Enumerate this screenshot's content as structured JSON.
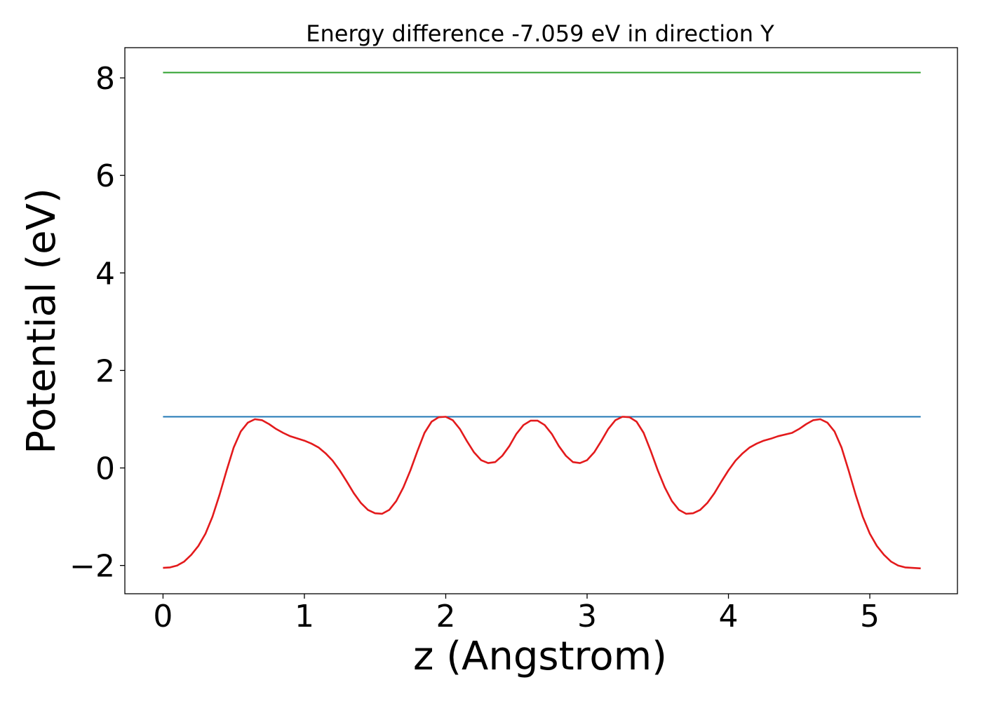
{
  "chart_data": {
    "type": "line",
    "title": "Energy difference -7.059 eV in direction Y",
    "xlabel": "z (Angstrom)",
    "ylabel": "Potential (eV)",
    "xlim": [
      -0.27,
      5.62
    ],
    "ylim": [
      -2.58,
      8.62
    ],
    "xticks": [
      0,
      1,
      2,
      3,
      4,
      5
    ],
    "xtick_labels": [
      "0",
      "1",
      "2",
      "3",
      "4",
      "5"
    ],
    "yticks": [
      -2,
      0,
      2,
      4,
      6,
      8
    ],
    "ytick_labels": [
      "−2",
      "0",
      "2",
      "4",
      "6",
      "8"
    ],
    "grid": false,
    "series": [
      {
        "color": "#2ca02c",
        "x": [
          0,
          5.36
        ],
        "y": [
          8.11,
          8.11
        ]
      },
      {
        "color": "#1f77b4",
        "x": [
          0,
          5.36
        ],
        "y": [
          1.05,
          1.05
        ]
      },
      {
        "color": "#e31a1c",
        "x": [
          0,
          0.05,
          0.1,
          0.15,
          0.2,
          0.25,
          0.3,
          0.35,
          0.4,
          0.45,
          0.5,
          0.55,
          0.6,
          0.65,
          0.7,
          0.75,
          0.8,
          0.85,
          0.9,
          1.0,
          1.05,
          1.1,
          1.15,
          1.2,
          1.25,
          1.3,
          1.35,
          1.4,
          1.45,
          1.5,
          1.55,
          1.6,
          1.65,
          1.7,
          1.75,
          1.8,
          1.85,
          1.9,
          1.95,
          2.0,
          2.05,
          2.1,
          2.15,
          2.2,
          2.25,
          2.3,
          2.35,
          2.4,
          2.45,
          2.5,
          2.55,
          2.6,
          2.65,
          2.7,
          2.75,
          2.8,
          2.85,
          2.9,
          2.95,
          3.0,
          3.05,
          3.1,
          3.15,
          3.2,
          3.25,
          3.3,
          3.35,
          3.4,
          3.45,
          3.5,
          3.55,
          3.6,
          3.65,
          3.7,
          3.75,
          3.8,
          3.85,
          3.9,
          3.95,
          4.0,
          4.05,
          4.1,
          4.15,
          4.2,
          4.25,
          4.3,
          4.35,
          4.45,
          4.5,
          4.55,
          4.6,
          4.65,
          4.7,
          4.75,
          4.8,
          4.85,
          4.9,
          4.95,
          5.0,
          5.05,
          5.1,
          5.15,
          5.2,
          5.25,
          5.3,
          5.36
        ],
        "y": [
          -2.05,
          -2.04,
          -2.0,
          -1.92,
          -1.78,
          -1.6,
          -1.35,
          -1.0,
          -0.55,
          -0.05,
          0.42,
          0.75,
          0.93,
          1.0,
          0.98,
          0.9,
          0.8,
          0.72,
          0.65,
          0.56,
          0.5,
          0.42,
          0.3,
          0.15,
          -0.05,
          -0.28,
          -0.52,
          -0.72,
          -0.86,
          -0.93,
          -0.94,
          -0.86,
          -0.68,
          -0.4,
          -0.05,
          0.35,
          0.72,
          0.95,
          1.04,
          1.05,
          0.98,
          0.8,
          0.55,
          0.32,
          0.16,
          0.1,
          0.12,
          0.25,
          0.45,
          0.7,
          0.88,
          0.97,
          0.97,
          0.88,
          0.7,
          0.45,
          0.25,
          0.12,
          0.1,
          0.16,
          0.32,
          0.55,
          0.8,
          0.98,
          1.05,
          1.04,
          0.95,
          0.72,
          0.35,
          -0.05,
          -0.4,
          -0.68,
          -0.86,
          -0.94,
          -0.93,
          -0.86,
          -0.72,
          -0.52,
          -0.28,
          -0.05,
          0.15,
          0.3,
          0.42,
          0.5,
          0.56,
          0.6,
          0.65,
          0.72,
          0.8,
          0.9,
          0.98,
          1.0,
          0.93,
          0.75,
          0.42,
          -0.05,
          -0.55,
          -1.0,
          -1.35,
          -1.6,
          -1.78,
          -1.92,
          -2.0,
          -2.04,
          -2.05,
          -2.06
        ]
      }
    ]
  }
}
